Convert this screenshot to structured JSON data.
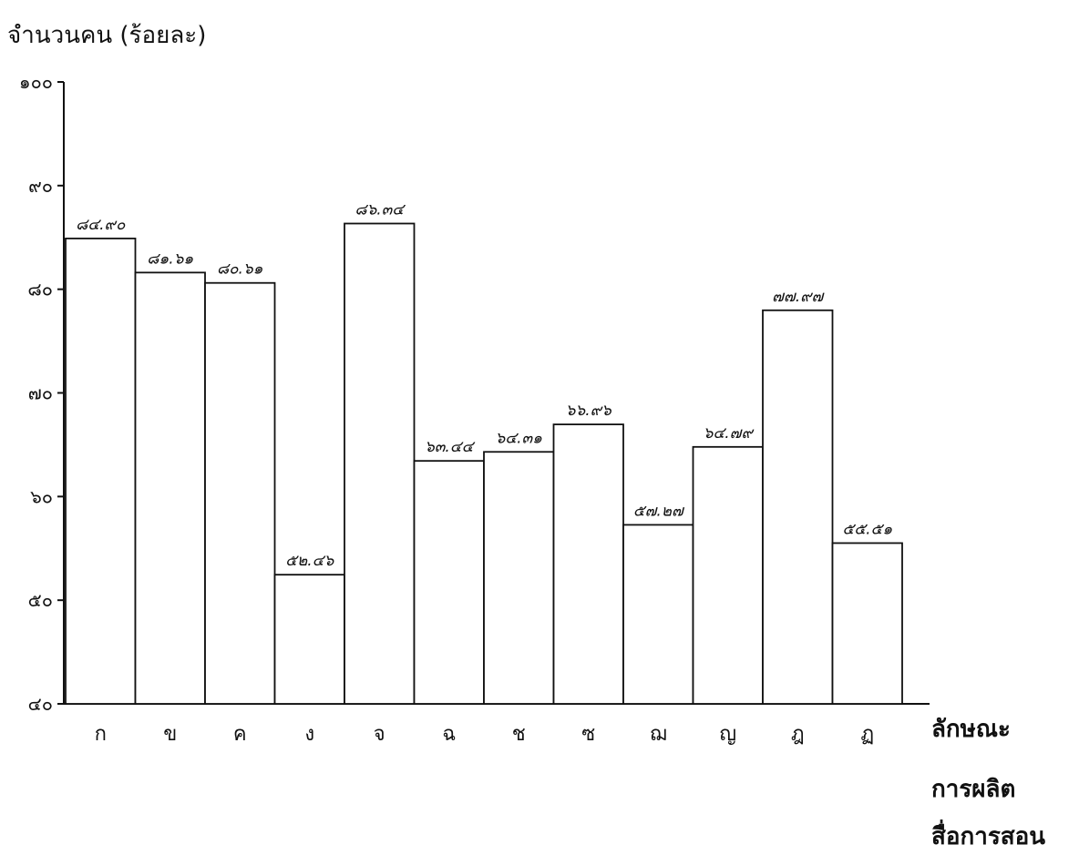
{
  "chart_data": {
    "type": "bar",
    "title": "",
    "ylabel": "จำนวนคน (ร้อยละ)",
    "xlabel": [
      "ลักษณะ",
      "การผลิต",
      "สื่อการสอน"
    ],
    "ylim": [
      40,
      100
    ],
    "yticks": [
      "๔๐",
      "๕๐",
      "๖๐",
      "๗๐",
      "๘๐",
      "๙๐",
      "๑๐๐"
    ],
    "ytick_values": [
      40,
      50,
      60,
      70,
      80,
      90,
      100
    ],
    "categories": [
      "ก",
      "ข",
      "ค",
      "ง",
      "จ",
      "ฉ",
      "ช",
      "ซ",
      "ฌ",
      "ญ",
      "ฎ",
      "ฏ"
    ],
    "values": [
      84.9,
      81.61,
      80.61,
      52.46,
      86.34,
      63.44,
      64.31,
      66.96,
      57.27,
      64.79,
      77.97,
      55.51
    ],
    "value_labels": [
      "๘๔.๙๐",
      "๘๑.๖๑",
      "๘๐.๖๑",
      "๕๒.๔๖",
      "๘๖.๓๔",
      "๖๓.๔๔",
      "๖๔.๓๑",
      "๖๖.๙๖",
      "๕๗.๒๗",
      "๖๔.๗๙",
      "๗๗.๙๗",
      "๕๕.๕๑"
    ],
    "grid": false,
    "legend": "none"
  }
}
